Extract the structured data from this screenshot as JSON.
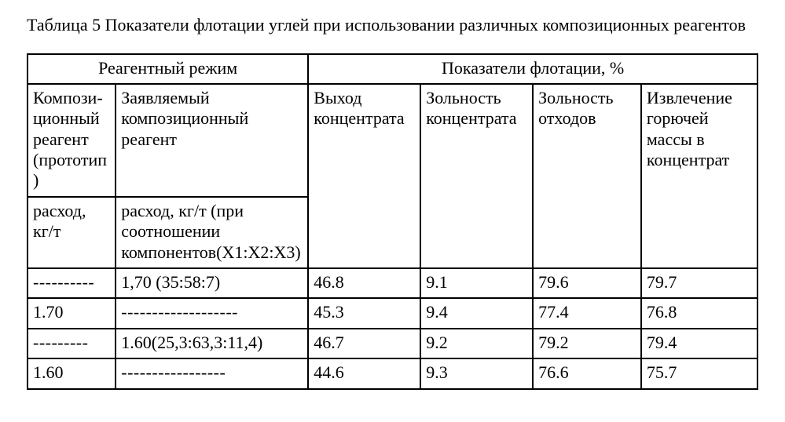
{
  "title": "Таблица 5 Показатели флотации углей при использовании различных композиционных реагентов",
  "head": {
    "group_left": "Реагентный режим",
    "group_right": "Показатели флотации, %",
    "col1a": "Компози-\nционный реагент (прототип)",
    "col2a": "Заявляемый композиционный реагент",
    "col3": "Выход концентрата",
    "col4": "Зольность концентрата",
    "col5": "Зольность отходов",
    "col6": "Извлечение горючей массы в концентрат",
    "col1b": "расход, кг/т",
    "col2b": "расход, кг/т\n(при соотношении компонентов(X1:X2:X3)"
  },
  "rows": [
    {
      "c1": "----------",
      "c2": "1,70 (35:58:7)",
      "c3": "46.8",
      "c4": "9.1",
      "c5": "79.6",
      "c6": "79.7"
    },
    {
      "c1": "1.70",
      "c2": "-------------------",
      "c3": "45.3",
      "c4": "9.4",
      "c5": "77.4",
      "c6": "76.8"
    },
    {
      "c1": "---------",
      "c2": "1.60(25,3:63,3:11,4)",
      "c3": "46.7",
      "c4": "9.2",
      "c5": "79.2",
      "c6": "79.4"
    },
    {
      "c1": "1.60",
      "c2": "-----------------",
      "c3": "44.6",
      "c4": "9.3",
      "c5": "76.6",
      "c6": "75.7"
    }
  ]
}
